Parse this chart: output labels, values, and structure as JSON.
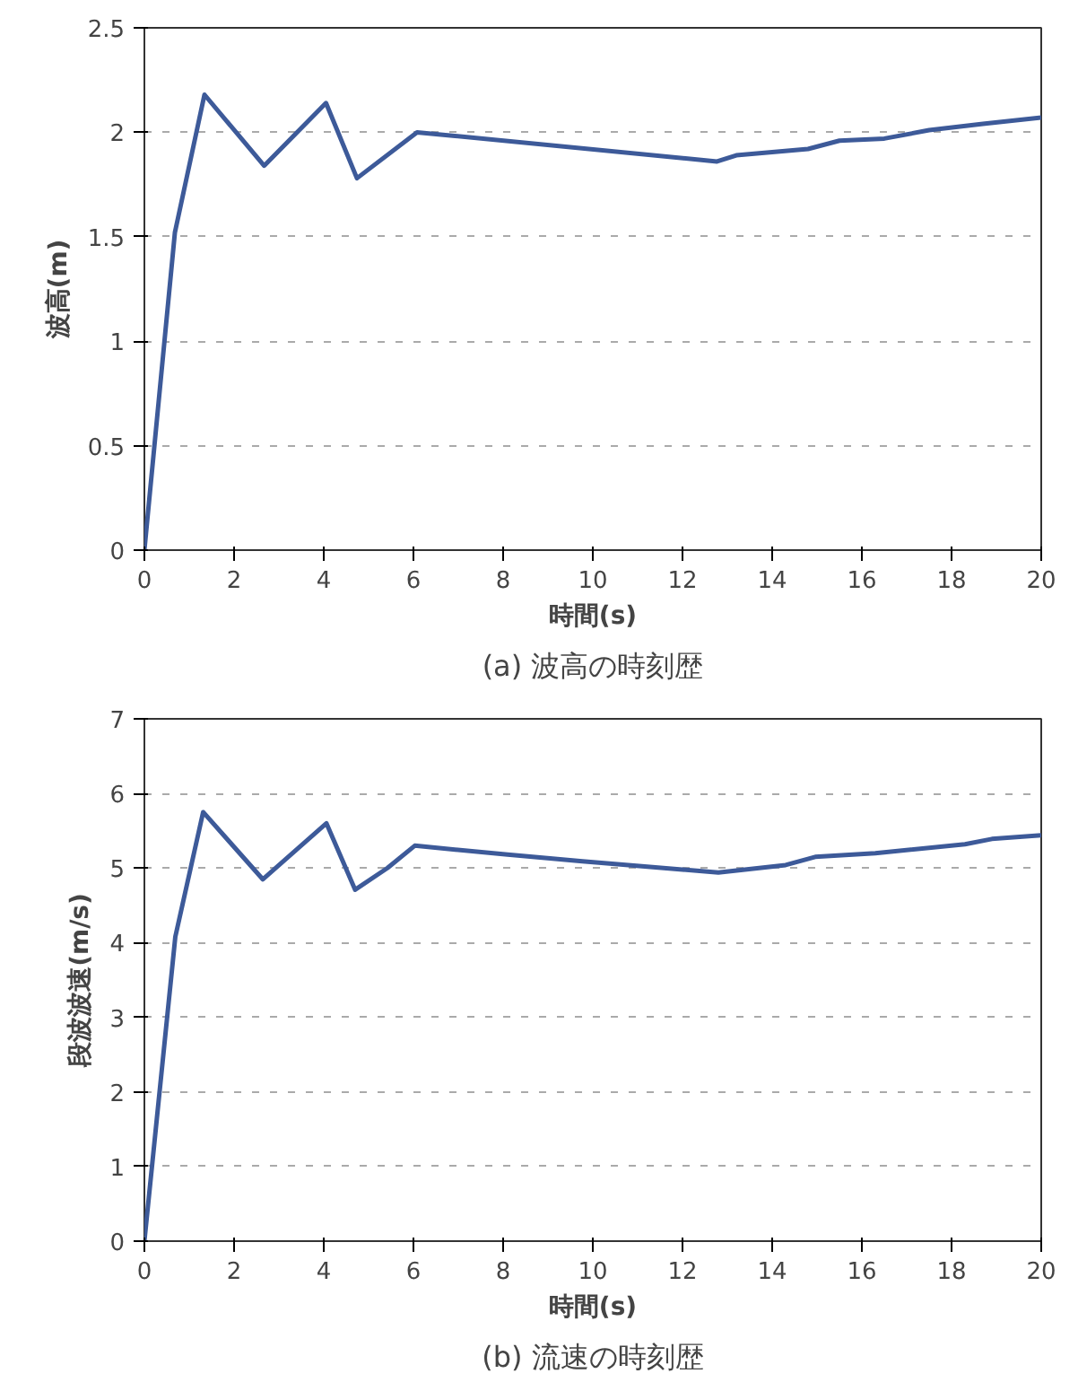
{
  "chart_data": [
    {
      "type": "line",
      "title": "(a) 波高の時刻歴",
      "xlabel": "時間(s)",
      "ylabel": "波高(m)",
      "xlim": [
        0,
        20
      ],
      "xticks": [
        0,
        2,
        4,
        6,
        8,
        10,
        12,
        14,
        16,
        18,
        20
      ],
      "ylim": [
        0,
        2.5
      ],
      "yticks": [
        0,
        0.5,
        1,
        1.5,
        2,
        2.5
      ],
      "grid": "y",
      "marker": "none",
      "line_style": "solid",
      "series": [
        {
          "color": "#3d5a99",
          "x": [
            0,
            0.68,
            1.34,
            2.67,
            4.05,
            4.74,
            6.08,
            12.77,
            13.2,
            14.8,
            15.5,
            16.5,
            17.5,
            18.7,
            20
          ],
          "values": [
            0,
            1.52,
            2.18,
            1.84,
            2.14,
            1.78,
            2.0,
            1.86,
            1.89,
            1.92,
            1.96,
            1.97,
            2.01,
            2.04,
            2.07
          ]
        }
      ]
    },
    {
      "type": "line",
      "title": "(b) 流速の時刻歴",
      "xlabel": "時間(s)",
      "ylabel": "段波波速(m/s)",
      "xlim": [
        0,
        20
      ],
      "xticks": [
        0,
        2,
        4,
        6,
        8,
        10,
        12,
        14,
        16,
        18,
        20
      ],
      "ylim": [
        0,
        7
      ],
      "yticks": [
        0,
        1,
        2,
        3,
        4,
        5,
        6,
        7
      ],
      "grid": "y",
      "marker": "none",
      "line_style": "solid",
      "series": [
        {
          "color": "#3d5a99",
          "x": [
            0,
            0.69,
            1.31,
            2.64,
            4.06,
            4.7,
            5.42,
            6.03,
            8.1,
            9.77,
            12.8,
            14.3,
            14.96,
            16.3,
            18.3,
            18.9,
            20
          ],
          "values": [
            0,
            4.08,
            5.75,
            4.85,
            5.6,
            4.71,
            5.0,
            5.3,
            5.18,
            5.09,
            4.94,
            5.04,
            5.15,
            5.2,
            5.32,
            5.39,
            5.44
          ]
        }
      ]
    }
  ]
}
